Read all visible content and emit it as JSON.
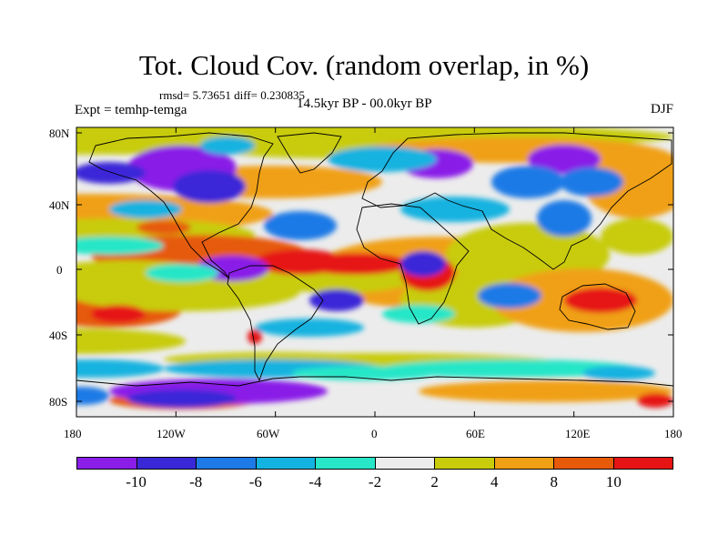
{
  "title": "Tot. Cloud Cov. (random overlap, in %)",
  "stats": "rmsd= 5.73651 diff= 0.230835",
  "experiment": "Expt = temhp-temga",
  "period": "14.5kyr BP - 00.0kyr BP",
  "season": "DJF",
  "lat_ticks": [
    "80N",
    "40N",
    "0",
    "40S",
    "80S"
  ],
  "lon_ticks": [
    "180",
    "120W",
    "60W",
    "0",
    "60E",
    "120E",
    "180"
  ],
  "colorbar": {
    "colors": [
      "#8a1ee8",
      "#3a28d8",
      "#1e7ae6",
      "#14b2e0",
      "#28e6c8",
      "#ececec",
      "#c8cc0a",
      "#f0a014",
      "#e65a0a",
      "#e61414"
    ],
    "labels": [
      "-10",
      "-8",
      "-6",
      "-4",
      "-2",
      "2",
      "4",
      "8",
      "10"
    ]
  },
  "chart_data": {
    "type": "heatmap",
    "title": "Tot. Cloud Cov. (random overlap, in %)",
    "variable": "Total cloud cover difference",
    "experiment": "temhp-temga",
    "period": "14.5kyr BP - 00.0kyr BP",
    "season": "DJF",
    "rmsd": 5.73651,
    "diff": 0.230835,
    "xlim": [
      -180,
      180
    ],
    "ylim": [
      -90,
      90
    ],
    "levels": [
      -10,
      -8,
      -6,
      -4,
      -2,
      2,
      4,
      8,
      10
    ]
  }
}
